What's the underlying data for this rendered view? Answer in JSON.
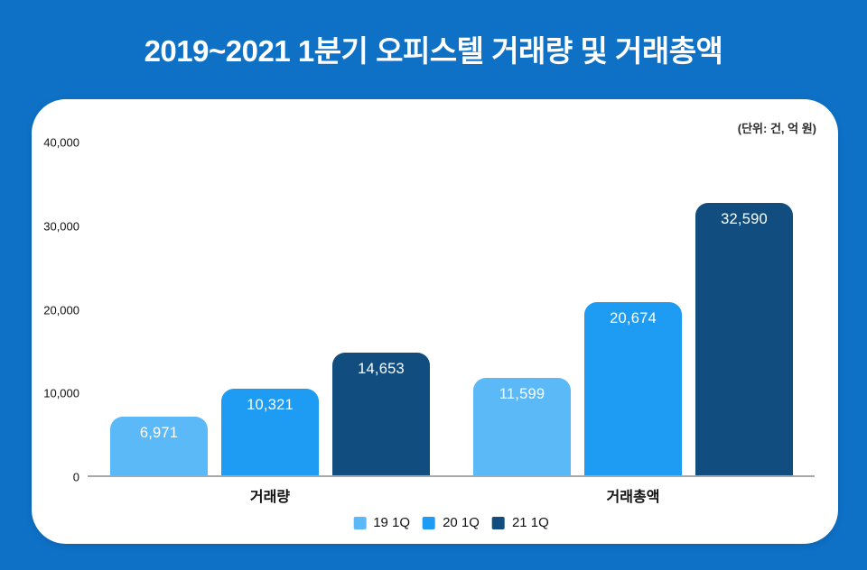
{
  "page": {
    "background_color": "#0e71c6",
    "title": "2019~2021 1분기 오피스텔 거래량 및 거래총액"
  },
  "chart_data": {
    "type": "bar",
    "title": "2019~2021 1분기 오피스텔 거래량 및 거래총액",
    "unit_note": "(단위: 건, 억 원)",
    "categories": [
      "거래량",
      "거래총액"
    ],
    "series": [
      {
        "name": "19 1Q",
        "color": "#5cb9f8",
        "values": [
          6971,
          11599
        ],
        "value_labels": [
          "6,971",
          "11,599"
        ]
      },
      {
        "name": "20 1Q",
        "color": "#1e9bf2",
        "values": [
          10321,
          20674
        ],
        "value_labels": [
          "10,321",
          "20,674"
        ]
      },
      {
        "name": "21 1Q",
        "color": "#114d7e",
        "values": [
          14653,
          32590
        ],
        "value_labels": [
          "14,653",
          "32,590"
        ]
      }
    ],
    "ylim": [
      0,
      40000
    ],
    "yticks": [
      0,
      10000,
      20000,
      30000,
      40000
    ],
    "ytick_labels": [
      "0",
      "10,000",
      "20,000",
      "30,000",
      "40,000"
    ],
    "grid": false,
    "legend_position": "bottom",
    "value_label_color": "#ffffff",
    "baseline_color": "#a8a8a8"
  }
}
